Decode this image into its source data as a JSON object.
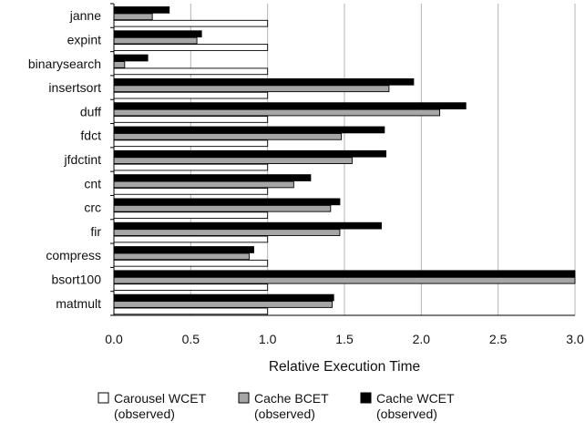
{
  "chart_data": {
    "type": "bar",
    "orientation": "horizontal",
    "categories": [
      "janne",
      "expint",
      "binarysearch",
      "insertsort",
      "duff",
      "fdct",
      "jfdctint",
      "cnt",
      "crc",
      "fir",
      "compress",
      "bsort100",
      "matmult"
    ],
    "series": [
      {
        "name": "Cache WCET",
        "name_line2": "(observed)",
        "color": "#000000",
        "values": [
          0.36,
          0.57,
          0.22,
          1.95,
          2.29,
          1.76,
          1.77,
          1.28,
          1.47,
          1.74,
          0.91,
          3.0,
          1.43
        ]
      },
      {
        "name": "Cache BCET",
        "name_line2": "(observed)",
        "color": "#a6a6a6",
        "values": [
          0.25,
          0.54,
          0.07,
          1.79,
          2.12,
          1.48,
          1.55,
          1.17,
          1.41,
          1.47,
          0.88,
          3.0,
          1.42
        ]
      },
      {
        "name": "Carousel WCET",
        "name_line2": "(observed)",
        "color": "#ffffff",
        "values": [
          1.0,
          1.0,
          1.0,
          1.0,
          1.0,
          1.0,
          1.0,
          1.0,
          1.0,
          1.0,
          1.0,
          1.0,
          1.0
        ]
      }
    ],
    "xlabel": "Relative Execution Time",
    "xlim": [
      0.0,
      3.0
    ],
    "xticks": [
      "0.0",
      "0.5",
      "1.0",
      "1.5",
      "2.0",
      "2.5",
      "3.0"
    ],
    "grid": "vertical",
    "legend_position": "bottom",
    "legend_order": [
      2,
      1,
      0
    ]
  }
}
